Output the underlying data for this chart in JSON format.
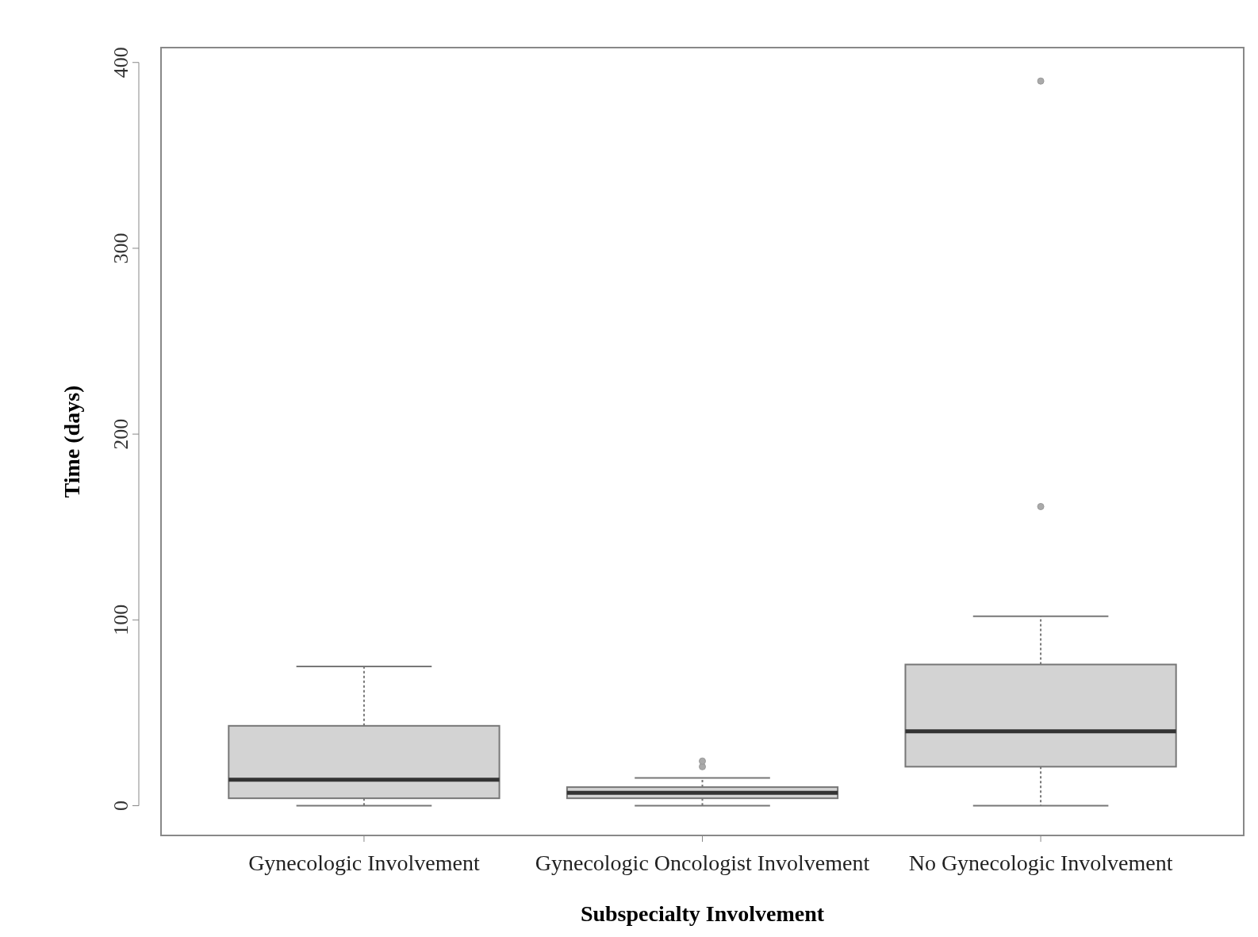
{
  "chart_data": {
    "type": "box",
    "xlabel": "Subspecialty Involvement",
    "ylabel": "Time (days)",
    "categories": [
      "Gynecologic Involvement",
      "Gynecologic Oncologist Involvement",
      "No Gynecologic Involvement"
    ],
    "boxes": [
      {
        "low": 0,
        "q1": 4,
        "median": 14,
        "q3": 43,
        "high": 75
      },
      {
        "low": 0,
        "q1": 4,
        "median": 7,
        "q3": 10,
        "high": 15,
        "outliers": [
          21,
          24
        ]
      },
      {
        "low": 0,
        "q1": 21,
        "median": 40,
        "q3": 76,
        "high": 102,
        "outliers": [
          161,
          390
        ]
      }
    ],
    "color": "#d3d3d3",
    "ylim": [
      -16,
      408
    ],
    "yticks": [
      0,
      100,
      200,
      300,
      400
    ],
    "grid": false
  }
}
